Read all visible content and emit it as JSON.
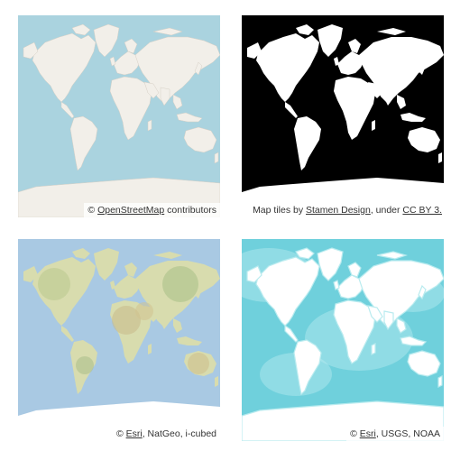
{
  "tiles": [
    {
      "id": "osm",
      "style": "OpenStreetMap",
      "colors": {
        "ocean": "#aad3df",
        "land": "#f2efe9",
        "ice": "#f2efe9",
        "ocean_edge": "#b5d0d0"
      },
      "attribution": {
        "prefix": "© ",
        "link_text": "OpenStreetMap",
        "suffix": " contributors"
      }
    },
    {
      "id": "stamen",
      "style": "Stamen Toner",
      "colors": {
        "ocean": "#000000",
        "land": "#ffffff",
        "ice": "#ffffff",
        "ocean_edge": "#000000"
      },
      "attribution": {
        "prefix": "Map tiles by ",
        "link_text": "Stamen Design",
        "middle": ", under ",
        "link2_text": "CC BY 3."
      }
    },
    {
      "id": "esri-imagery",
      "style": "Esri NatGeo World Map",
      "colors": {
        "ocean": "#a9c9e3",
        "land": "#d8dcae",
        "ice": "#ffffff",
        "ocean_edge": "#c8dbe8"
      },
      "attribution": {
        "prefix": "© ",
        "link_text": "Esri",
        "suffix": ", NatGeo, i-cubed"
      }
    },
    {
      "id": "esri-ocean",
      "style": "Esri Ocean Basemap",
      "colors": {
        "ocean": "#6fd0dc",
        "land": "#ffffff",
        "ice": "#ffffff",
        "ocean_edge": "#b9ebef"
      },
      "attribution": {
        "prefix": "© ",
        "link_text": "Esri",
        "suffix": ", USGS, NOAA"
      }
    }
  ]
}
